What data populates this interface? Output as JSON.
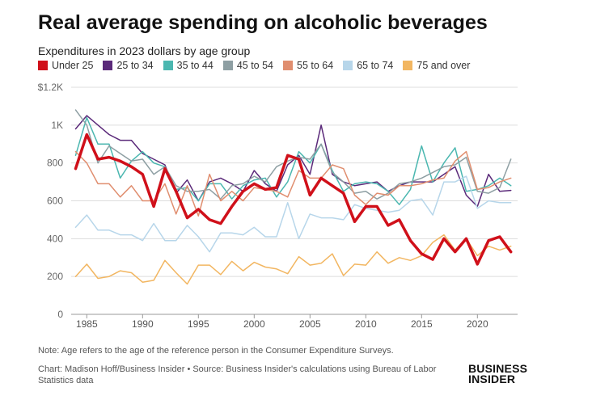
{
  "chart_data": {
    "type": "line",
    "title": "Real average spending on alcoholic beverages",
    "subtitle": "Expenditures in 2023 dollars by age group",
    "xlabel": "",
    "ylabel": "",
    "ylim": [
      0,
      1200
    ],
    "y_ticks": [
      {
        "value": 0,
        "label": "0"
      },
      {
        "value": 200,
        "label": "200"
      },
      {
        "value": 400,
        "label": "400"
      },
      {
        "value": 600,
        "label": "600"
      },
      {
        "value": 800,
        "label": "800"
      },
      {
        "value": 1000,
        "label": "1K"
      },
      {
        "value": 1200,
        "label": "$1.2K"
      }
    ],
    "x_ticks": [
      1985,
      1990,
      1995,
      2000,
      2005,
      2010,
      2015,
      2020
    ],
    "x": [
      1984,
      1985,
      1986,
      1987,
      1988,
      1989,
      1990,
      1991,
      1992,
      1993,
      1994,
      1995,
      1996,
      1997,
      1998,
      1999,
      2000,
      2001,
      2002,
      2003,
      2004,
      2005,
      2006,
      2007,
      2008,
      2009,
      2010,
      2011,
      2012,
      2013,
      2014,
      2015,
      2016,
      2017,
      2018,
      2019,
      2020,
      2021,
      2022,
      2023
    ],
    "grid": true,
    "legend_position": "top",
    "series": [
      {
        "name": "Under 25",
        "color": "#d0101a",
        "width": 3.5,
        "values": [
          770,
          950,
          820,
          830,
          810,
          780,
          740,
          570,
          770,
          650,
          510,
          555,
          500,
          480,
          570,
          650,
          690,
          660,
          670,
          840,
          820,
          630,
          720,
          680,
          640,
          490,
          570,
          570,
          470,
          500,
          390,
          320,
          290,
          400,
          330,
          400,
          265,
          390,
          410,
          330
        ]
      },
      {
        "name": "25 to 34",
        "color": "#5b2a7a",
        "width": 1.5,
        "values": [
          980,
          1050,
          1000,
          950,
          920,
          920,
          850,
          820,
          790,
          640,
          710,
          600,
          700,
          720,
          690,
          650,
          760,
          690,
          650,
          790,
          840,
          740,
          1000,
          740,
          700,
          680,
          690,
          700,
          650,
          680,
          700,
          700,
          700,
          740,
          780,
          630,
          570,
          740,
          650,
          655
        ]
      },
      {
        "name": "35 to 44",
        "color": "#4bb7b0",
        "width": 1.5,
        "values": [
          840,
          1040,
          900,
          900,
          720,
          810,
          860,
          800,
          780,
          660,
          670,
          600,
          690,
          690,
          610,
          680,
          710,
          720,
          620,
          700,
          860,
          800,
          900,
          760,
          650,
          690,
          700,
          690,
          650,
          580,
          660,
          890,
          700,
          800,
          880,
          650,
          660,
          680,
          720,
          680
        ]
      },
      {
        "name": "45 to 54",
        "color": "#8e9fa3",
        "width": 1.5,
        "values": [
          1080,
          1000,
          800,
          890,
          850,
          810,
          820,
          740,
          780,
          680,
          650,
          650,
          660,
          610,
          680,
          690,
          730,
          700,
          780,
          810,
          830,
          820,
          900,
          750,
          700,
          640,
          650,
          610,
          640,
          690,
          700,
          720,
          750,
          780,
          790,
          830,
          650,
          640,
          670,
          820
        ]
      },
      {
        "name": "55 to 64",
        "color": "#e08e6f",
        "width": 1.5,
        "values": [
          860,
          800,
          690,
          690,
          620,
          680,
          600,
          600,
          690,
          530,
          680,
          520,
          740,
          600,
          650,
          600,
          670,
          660,
          650,
          620,
          760,
          720,
          720,
          790,
          770,
          630,
          580,
          640,
          630,
          680,
          680,
          690,
          710,
          720,
          810,
          860,
          660,
          670,
          700,
          720
        ]
      },
      {
        "name": "65 to 74",
        "color": "#b7d6ea",
        "width": 1.5,
        "values": [
          460,
          525,
          445,
          445,
          420,
          420,
          390,
          480,
          390,
          390,
          470,
          410,
          330,
          430,
          430,
          420,
          460,
          410,
          410,
          590,
          400,
          530,
          510,
          510,
          500,
          580,
          560,
          550,
          540,
          550,
          600,
          610,
          525,
          700,
          700,
          730,
          560,
          600,
          590,
          590
        ]
      },
      {
        "name": "75 and over",
        "color": "#f2b661",
        "width": 1.5,
        "values": [
          200,
          265,
          190,
          200,
          230,
          220,
          170,
          180,
          285,
          220,
          160,
          260,
          260,
          210,
          280,
          230,
          275,
          250,
          240,
          215,
          305,
          260,
          270,
          320,
          205,
          265,
          260,
          330,
          270,
          300,
          285,
          310,
          380,
          420,
          340,
          400,
          310,
          360,
          340,
          360
        ]
      }
    ]
  },
  "footer": {
    "note": "Note: Age refers to the age of the reference person in the Consumer Expenditure Surveys.",
    "credit": "Chart: Madison Hoff/Business Insider • Source: Business Insider's calculations using Bureau of Labor Statistics data",
    "logo_line1": "BUSINESS",
    "logo_line2": "INSIDER"
  }
}
